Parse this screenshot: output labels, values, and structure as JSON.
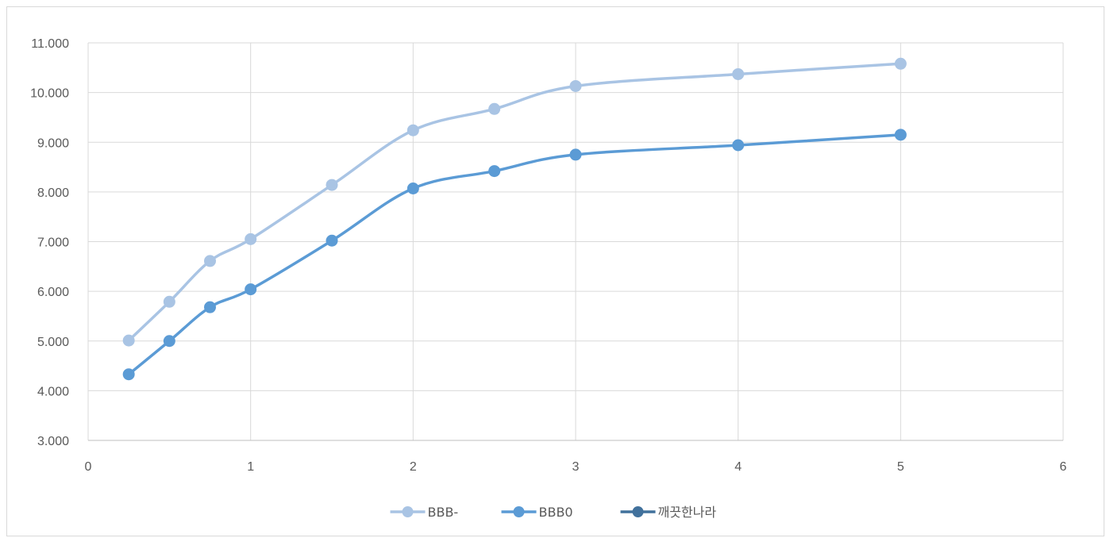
{
  "chart_data": {
    "type": "line",
    "smooth": true,
    "xlim": [
      0,
      6
    ],
    "ylim": [
      3000,
      11000
    ],
    "x_ticks": [
      "0",
      "1",
      "2",
      "3",
      "4",
      "5",
      "6"
    ],
    "y_ticks": [
      "3.000",
      "4.000",
      "5.000",
      "6.000",
      "7.000",
      "8.000",
      "9.000",
      "10.000",
      "11.000"
    ],
    "x_tick_values": [
      0,
      1,
      2,
      3,
      4,
      5,
      6
    ],
    "y_tick_values": [
      3000,
      4000,
      5000,
      6000,
      7000,
      8000,
      9000,
      10000,
      11000
    ],
    "grid": true,
    "legend_position": "bottom",
    "series": [
      {
        "name": "BBB-",
        "color": "#a9c4e4",
        "x": [
          0.25,
          0.5,
          0.75,
          1,
          1.5,
          2,
          2.5,
          3,
          4,
          5
        ],
        "y": [
          5010,
          5790,
          6610,
          7050,
          8140,
          9240,
          9670,
          10130,
          10370,
          10580
        ]
      },
      {
        "name": "BBB0",
        "color": "#5b9bd5",
        "x": [
          0.25,
          0.5,
          0.75,
          1,
          1.5,
          2,
          2.5,
          3,
          4,
          5
        ],
        "y": [
          4330,
          5000,
          5680,
          6040,
          7020,
          8070,
          8420,
          8750,
          8940,
          9150
        ]
      },
      {
        "name": "깨끗한나라",
        "color": "#41719c",
        "x": [],
        "y": []
      }
    ]
  }
}
